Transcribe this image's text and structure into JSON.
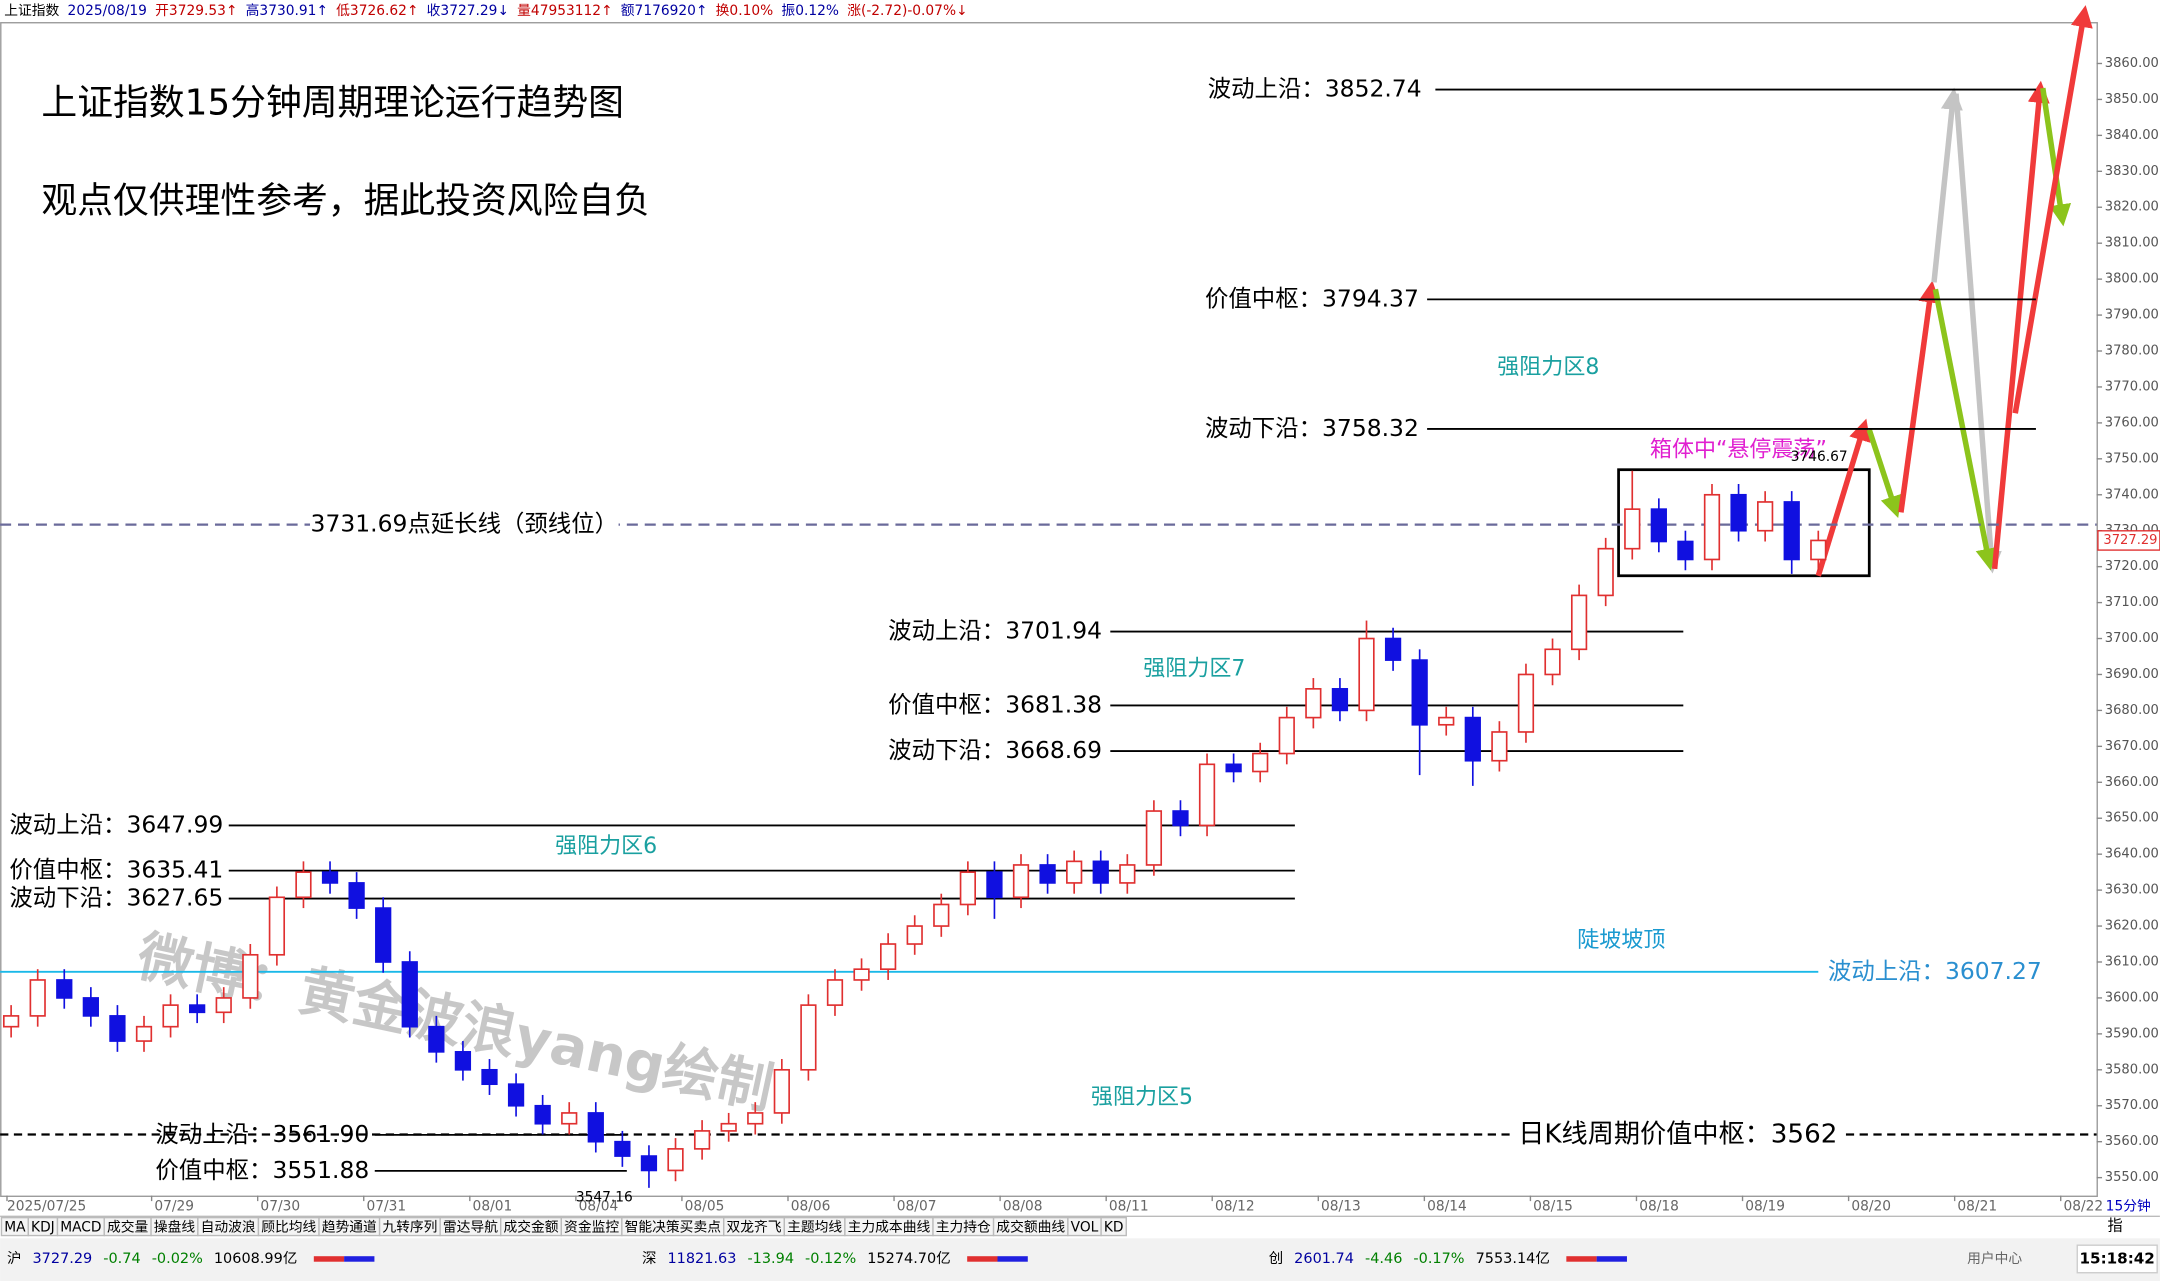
{
  "header": [
    "上证指数",
    "2025/08/19",
    "开3729.53↑",
    "高3730.91↑",
    "低3726.62↑",
    "收3727.29↓",
    "量47953112↑",
    "额7176920↑",
    "换0.10%",
    "振0.12%",
    "涨(-2.72)-0.07%↓"
  ],
  "chart_data": {
    "type": "candlestick",
    "title": "上证指数15分钟周期理论运行趋势图",
    "subtitle": "观点仅供理性参考，据此投资风险自负",
    "watermark": "微博：黄金波浪yang绘制",
    "categories": [
      "2025/07/25",
      "07/29",
      "07/30",
      "07/31",
      "08/01",
      "08/04",
      "08/05",
      "08/06",
      "08/07",
      "08/08",
      "08/11",
      "08/12",
      "08/13",
      "08/14",
      "08/15",
      "08/18",
      "08/19",
      "08/20",
      "08/21",
      "08/22"
    ],
    "candles": [
      [
        3592,
        3598,
        3589,
        3595
      ],
      [
        3595,
        3608,
        3592,
        3605
      ],
      [
        3605,
        3608,
        3597,
        3600
      ],
      [
        3600,
        3603,
        3592,
        3595
      ],
      [
        3595,
        3598,
        3585,
        3588
      ],
      [
        3588,
        3595,
        3585,
        3592
      ],
      [
        3592,
        3601,
        3589,
        3598
      ],
      [
        3598,
        3601,
        3593,
        3596
      ],
      [
        3596,
        3603,
        3593,
        3600
      ],
      [
        3600,
        3615,
        3597,
        3612
      ],
      [
        3612,
        3631,
        3609,
        3628
      ],
      [
        3628,
        3638,
        3625,
        3635
      ],
      [
        3635,
        3638,
        3629,
        3632
      ],
      [
        3632,
        3635,
        3622,
        3625
      ],
      [
        3625,
        3628,
        3607,
        3610
      ],
      [
        3610,
        3613,
        3589,
        3592
      ],
      [
        3592,
        3595,
        3582,
        3585
      ],
      [
        3585,
        3588,
        3577,
        3580
      ],
      [
        3580,
        3583,
        3573,
        3576
      ],
      [
        3576,
        3579,
        3567,
        3570
      ],
      [
        3570,
        3573,
        3562,
        3565
      ],
      [
        3565,
        3571,
        3562,
        3568
      ],
      [
        3568,
        3571,
        3557,
        3560
      ],
      [
        3560,
        3563,
        3553,
        3556
      ],
      [
        3556,
        3559,
        3547.16,
        3552
      ],
      [
        3552,
        3561,
        3549,
        3558
      ],
      [
        3558,
        3566,
        3555,
        3563
      ],
      [
        3563,
        3568,
        3560,
        3565
      ],
      [
        3565,
        3571,
        3562,
        3568
      ],
      [
        3568,
        3583,
        3565,
        3580
      ],
      [
        3580,
        3601,
        3577,
        3598
      ],
      [
        3598,
        3608,
        3595,
        3605
      ],
      [
        3605,
        3611,
        3602,
        3608
      ],
      [
        3608,
        3618,
        3605,
        3615
      ],
      [
        3615,
        3623,
        3612,
        3620
      ],
      [
        3620,
        3629,
        3617,
        3626
      ],
      [
        3626,
        3638,
        3623,
        3635
      ],
      [
        3635,
        3638,
        3622,
        3628
      ],
      [
        3628,
        3640,
        3625,
        3637
      ],
      [
        3637,
        3640,
        3629,
        3632
      ],
      [
        3632,
        3641,
        3629,
        3638
      ],
      [
        3638,
        3641,
        3629,
        3632
      ],
      [
        3632,
        3640,
        3629,
        3637
      ],
      [
        3637,
        3655,
        3634,
        3652
      ],
      [
        3652,
        3655,
        3645,
        3648
      ],
      [
        3648,
        3668,
        3645,
        3665
      ],
      [
        3665,
        3668,
        3660,
        3663
      ],
      [
        3663,
        3671,
        3660,
        3668
      ],
      [
        3668,
        3681,
        3665,
        3678
      ],
      [
        3678,
        3689,
        3675,
        3686
      ],
      [
        3686,
        3689,
        3677,
        3680
      ],
      [
        3680,
        3705,
        3677,
        3700
      ],
      [
        3700,
        3703,
        3691,
        3694
      ],
      [
        3694,
        3697,
        3662,
        3676
      ],
      [
        3676,
        3681,
        3673,
        3678
      ],
      [
        3678,
        3681,
        3659,
        3666
      ],
      [
        3666,
        3677,
        3663,
        3674
      ],
      [
        3674,
        3693,
        3671,
        3690
      ],
      [
        3690,
        3700,
        3687,
        3697
      ],
      [
        3697,
        3715,
        3694,
        3712
      ],
      [
        3712,
        3728,
        3709,
        3725
      ],
      [
        3725,
        3746.67,
        3722,
        3736
      ],
      [
        3736,
        3739,
        3724,
        3727
      ],
      [
        3727,
        3730,
        3719,
        3722
      ],
      [
        3722,
        3743,
        3719,
        3740
      ],
      [
        3740,
        3743,
        3727,
        3730
      ],
      [
        3730,
        3741,
        3727,
        3738
      ],
      [
        3738,
        3741,
        3718,
        3722
      ],
      [
        3722,
        3730,
        3719,
        3727.29
      ]
    ],
    "up_color": "#e03030",
    "down_color": "#1010e0",
    "levels": [
      {
        "name": "波动上沿：",
        "value": 3852.74
      },
      {
        "name": "价值中枢：",
        "value": 3794.37
      },
      {
        "name": "波动下沿：",
        "value": 3758.32
      },
      {
        "name": "点延长线（颈线位）",
        "value": 3731.69
      },
      {
        "name": "波动上沿：",
        "value": 3701.94
      },
      {
        "name": "价值中枢：",
        "value": 3681.38
      },
      {
        "name": "波动下沿：",
        "value": 3668.69
      },
      {
        "name": "波动上沿：",
        "value": 3647.99
      },
      {
        "name": "价值中枢：",
        "value": 3635.41
      },
      {
        "name": "波动下沿：",
        "value": 3627.65
      },
      {
        "name": "波动上沿：",
        "value": 3607.27
      },
      {
        "name": "日K线周期价值中枢：",
        "value": 3562
      },
      {
        "name": "波动上沿：",
        "value": 3561.9,
        "value_label": "3561.90"
      },
      {
        "name": "价值中枢：",
        "value": 3551.88
      }
    ],
    "zones": [
      "强阻力区8",
      "强阻力区7",
      "强阻力区6",
      "强阻力区5",
      "陡坡坡顶",
      "箱体中“悬停震荡”"
    ],
    "annotations": [
      {
        "value": 3746.67
      },
      {
        "value": 3547.16
      }
    ],
    "ylim": [
      3545,
      3870
    ],
    "yticks": [
      {
        "value": 3550,
        "label": "3550.00"
      },
      {
        "value": 3560,
        "label": "3560.00"
      },
      {
        "value": 3570,
        "label": "3570.00"
      },
      {
        "value": 3580,
        "label": "3580.00"
      },
      {
        "value": 3590,
        "label": "3590.00"
      },
      {
        "value": 3600,
        "label": "3600.00"
      },
      {
        "value": 3610,
        "label": "3610.00"
      },
      {
        "value": 3620,
        "label": "3620.00"
      },
      {
        "value": 3630,
        "label": "3630.00"
      },
      {
        "value": 3640,
        "label": "3640.00"
      },
      {
        "value": 3650,
        "label": "3650.00"
      },
      {
        "value": 3660,
        "label": "3660.00"
      },
      {
        "value": 3670,
        "label": "3670.00"
      },
      {
        "value": 3680,
        "label": "3680.00"
      },
      {
        "value": 3690,
        "label": "3690.00"
      },
      {
        "value": 3700,
        "label": "3700.00"
      },
      {
        "value": 3710,
        "label": "3710.00"
      },
      {
        "value": 3720,
        "label": "3720.00"
      },
      {
        "value": 3730,
        "label": "3730.00"
      },
      {
        "value": 3740,
        "label": "3740.00"
      },
      {
        "value": 3750,
        "label": "3750.00"
      },
      {
        "value": 3760,
        "label": "3760.00"
      },
      {
        "value": 3770,
        "label": "3770.00"
      },
      {
        "value": 3780,
        "label": "3780.00"
      },
      {
        "value": 3790,
        "label": "3790.00"
      },
      {
        "value": 3800,
        "label": "3800.00"
      },
      {
        "value": 3810,
        "label": "3810.00"
      },
      {
        "value": 3820,
        "label": "3820.00"
      },
      {
        "value": 3830,
        "label": "3830.00"
      },
      {
        "value": 3840,
        "label": "3840.00"
      },
      {
        "value": 3850,
        "label": "3850.00"
      },
      {
        "value": 3860,
        "label": "3860.00"
      }
    ],
    "period": "15分钟"
  },
  "tabs": [
    "MA",
    "KDJ",
    "MACD",
    "成交量",
    "操盘线",
    "自动波浪",
    "顾比均线",
    "趋势通道",
    "九转序列",
    "雷达导航",
    "成交金额",
    "资金监控",
    "智能决策买卖点",
    "双龙齐飞",
    "主题均线",
    "主力成本曲线",
    "主力持仓",
    "成交额曲线",
    "VOL",
    "KD"
  ],
  "status": {
    "markets": [
      [
        "沪",
        "3727.29",
        "-0.74",
        "-0.02%",
        "10608.99亿"
      ],
      [
        "深",
        "11821.63",
        "-13.94",
        "-0.12%",
        "15274.70亿"
      ],
      [
        "创",
        "2601.74",
        "-4.46",
        "-0.17%",
        "7553.14亿"
      ]
    ],
    "right_tab": "指",
    "user": "用户中心",
    "clock": "15:18:42"
  }
}
